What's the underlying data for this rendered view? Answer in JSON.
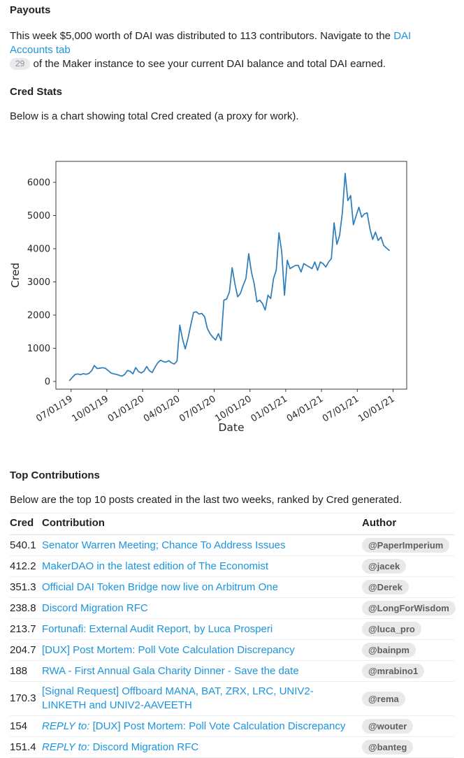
{
  "payouts": {
    "heading": "Payouts",
    "text_before_link": "This week $5,000 worth of DAI was distributed to 113 contributors. Navigate to the ",
    "link_label": "DAI Accounts tab",
    "link_click_count": "29",
    "text_after_badge": "of the Maker instance to see your current DAI balance and total DAI earned."
  },
  "cred_stats": {
    "heading": "Cred Stats",
    "description": "Below is a chart showing total Cred created (a proxy for work)."
  },
  "chart_data": {
    "type": "line",
    "title": "",
    "xlabel": "Date",
    "ylabel": "Cred",
    "x_start": "2019-06-24",
    "x_interval": "weekly",
    "x_tick_labels": [
      "07/01/19",
      "10/01/19",
      "01/01/20",
      "04/01/20",
      "07/01/20",
      "10/01/20",
      "01/01/21",
      "04/01/21",
      "07/01/21",
      "10/01/21"
    ],
    "y_ticks": [
      0,
      1000,
      2000,
      3000,
      4000,
      5000,
      6000
    ],
    "ylim": [
      -230,
      6630
    ],
    "grid": false,
    "legend": "none",
    "line_color": "#2b7cba",
    "axis_color": "#3b3b3b",
    "text_color": "#262626",
    "values": [
      30,
      120,
      210,
      225,
      205,
      235,
      215,
      240,
      320,
      480,
      390,
      400,
      415,
      395,
      330,
      255,
      230,
      215,
      185,
      160,
      210,
      330,
      305,
      230,
      420,
      300,
      255,
      310,
      450,
      320,
      270,
      430,
      560,
      640,
      600,
      580,
      625,
      560,
      525,
      610,
      1700,
      1280,
      980,
      1310,
      1700,
      2080,
      2100,
      2030,
      2050,
      1950,
      1600,
      1440,
      1330,
      1250,
      1440,
      1230,
      2450,
      2480,
      2700,
      3430,
      2950,
      2550,
      2650,
      2900,
      3100,
      3850,
      3300,
      2950,
      2400,
      2450,
      2350,
      2150,
      2600,
      2500,
      3100,
      3350,
      4480,
      3900,
      2600,
      3650,
      3400,
      3450,
      3500,
      3500,
      3300,
      3550,
      3500,
      3450,
      3400,
      3600,
      3350,
      3600,
      3550,
      3450,
      3600,
      3700,
      4780,
      4130,
      4400,
      5100,
      6270,
      5450,
      5600,
      4720,
      5000,
      5250,
      4950,
      5050,
      5080,
      4600,
      4280,
      4500,
      4250,
      4350,
      4100,
      4020,
      3950
    ]
  },
  "top_contributions": {
    "heading": "Top Contributions",
    "description": "Below are the top 10 posts created in the last two weeks, ranked by Cred generated.",
    "table": {
      "columns": {
        "cred": "Cred",
        "contribution": "Contribution",
        "author": "Author"
      },
      "rows": [
        {
          "cred": "540.1",
          "reply_prefix": "",
          "title": "Senator Warren Meeting; Chance To Address Issues",
          "author": "@PaperImperium"
        },
        {
          "cred": "412.2",
          "reply_prefix": "",
          "title": "MakerDAO in the latest edition of The Economist",
          "author": "@jacek"
        },
        {
          "cred": "351.3",
          "reply_prefix": "",
          "title": "Official DAI Token Bridge now live on Arbitrum One",
          "author": "@Derek"
        },
        {
          "cred": "238.8",
          "reply_prefix": "",
          "title": "Discord Migration RFC",
          "author": "@LongForWisdom"
        },
        {
          "cred": "213.7",
          "reply_prefix": "",
          "title": "Fortunafi: External Audit Report, by Luca Prosperi",
          "author": "@luca_pro"
        },
        {
          "cred": "204.7",
          "reply_prefix": "",
          "title": "[DUX] Post Mortem: Poll Vote Calculation Discrepancy",
          "author": "@bainpm"
        },
        {
          "cred": "188",
          "reply_prefix": "",
          "title": "RWA - First Annual Gala Charity Dinner - Save the date",
          "author": "@mrabino1"
        },
        {
          "cred": "170.3",
          "reply_prefix": "",
          "title": "[Signal Request] Offboard MANA, BAT, ZRX, LRC, UNIV2-LINKETH and UNIV2-AAVEETH",
          "author": "@rema"
        },
        {
          "cred": "154",
          "reply_prefix": "REPLY to:",
          "title": "[DUX] Post Mortem: Poll Vote Calculation Discrepancy",
          "author": "@wouter"
        },
        {
          "cred": "151.4",
          "reply_prefix": "REPLY to:",
          "title": "Discord Migration RFC",
          "author": "@banteg"
        }
      ]
    }
  }
}
